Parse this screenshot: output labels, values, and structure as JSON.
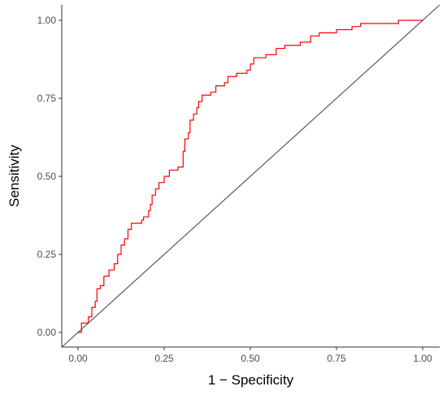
{
  "chart_data": {
    "type": "line",
    "title": "",
    "xlabel": "1 − Specificity",
    "ylabel": "Sensitivity",
    "xlim": [
      0,
      1
    ],
    "ylim": [
      0,
      1
    ],
    "x_ticks": [
      "0.00",
      "0.25",
      "0.50",
      "0.75",
      "1.00"
    ],
    "y_ticks": [
      "0.00",
      "0.25",
      "0.50",
      "0.75",
      "1.00"
    ],
    "grid": false,
    "legend": "none",
    "reference_line": {
      "from": [
        0,
        0
      ],
      "to": [
        1,
        1
      ],
      "color": "#4d4d4d"
    },
    "series": [
      {
        "color": "#ff0000",
        "step": true,
        "points": [
          [
            0.0,
            0.0
          ],
          [
            0.01,
            0.03
          ],
          [
            0.03,
            0.05
          ],
          [
            0.04,
            0.08
          ],
          [
            0.05,
            0.1
          ],
          [
            0.055,
            0.14
          ],
          [
            0.065,
            0.15
          ],
          [
            0.075,
            0.18
          ],
          [
            0.09,
            0.2
          ],
          [
            0.105,
            0.22
          ],
          [
            0.115,
            0.25
          ],
          [
            0.125,
            0.28
          ],
          [
            0.135,
            0.3
          ],
          [
            0.145,
            0.33
          ],
          [
            0.155,
            0.35
          ],
          [
            0.185,
            0.36
          ],
          [
            0.19,
            0.37
          ],
          [
            0.205,
            0.39
          ],
          [
            0.21,
            0.41
          ],
          [
            0.215,
            0.44
          ],
          [
            0.225,
            0.46
          ],
          [
            0.235,
            0.48
          ],
          [
            0.25,
            0.5
          ],
          [
            0.265,
            0.52
          ],
          [
            0.29,
            0.53
          ],
          [
            0.305,
            0.58
          ],
          [
            0.31,
            0.62
          ],
          [
            0.32,
            0.64
          ],
          [
            0.325,
            0.68
          ],
          [
            0.335,
            0.7
          ],
          [
            0.345,
            0.72
          ],
          [
            0.35,
            0.74
          ],
          [
            0.36,
            0.76
          ],
          [
            0.385,
            0.77
          ],
          [
            0.4,
            0.79
          ],
          [
            0.425,
            0.8
          ],
          [
            0.435,
            0.82
          ],
          [
            0.46,
            0.83
          ],
          [
            0.49,
            0.84
          ],
          [
            0.5,
            0.86
          ],
          [
            0.51,
            0.88
          ],
          [
            0.545,
            0.89
          ],
          [
            0.575,
            0.91
          ],
          [
            0.6,
            0.92
          ],
          [
            0.645,
            0.93
          ],
          [
            0.675,
            0.95
          ],
          [
            0.7,
            0.96
          ],
          [
            0.75,
            0.97
          ],
          [
            0.795,
            0.98
          ],
          [
            0.82,
            0.99
          ],
          [
            0.93,
            1.0
          ],
          [
            1.0,
            1.0
          ]
        ]
      }
    ]
  }
}
